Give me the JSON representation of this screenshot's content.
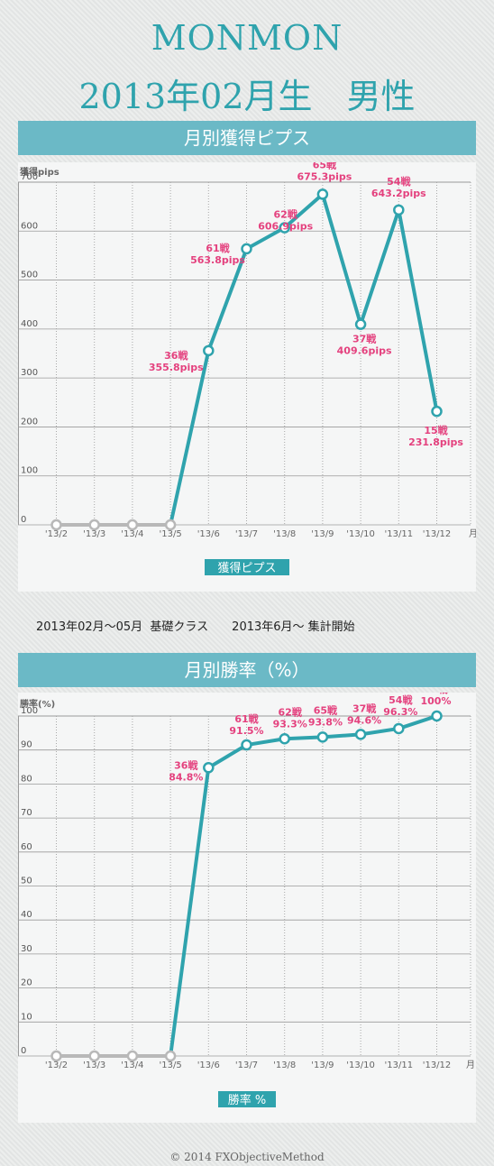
{
  "header": {
    "name": "MONMON",
    "profile": "2013年02月生　男性"
  },
  "note": "2013年02月～05月  基礎クラス　　2013年6月～ 集計開始",
  "footer": "© 2014 FXObjectiveMethod",
  "colors": {
    "accent": "#2fa3ad",
    "label": "#e4417e",
    "baseline": "#b8b8b8",
    "band": "#6bb9c6"
  },
  "chart_data": [
    {
      "type": "line",
      "title": "月別獲得ピプス",
      "ylabel": "獲得pips",
      "xunit": "月",
      "legend": "獲得ピプス",
      "categories": [
        "'13/2",
        "'13/3",
        "'13/4",
        "'13/5",
        "'13/6",
        "'13/7",
        "'13/8",
        "'13/9",
        "'13/10",
        "'13/11",
        "'13/12"
      ],
      "values": [
        0,
        0,
        0,
        0,
        355.8,
        563.8,
        606.9,
        675.3,
        409.6,
        643.2,
        231.8
      ],
      "labels": [
        null,
        null,
        null,
        null,
        [
          "36戦",
          "355.8pips"
        ],
        [
          "61戦",
          "563.8pips"
        ],
        [
          "62戦",
          "606.9pips"
        ],
        [
          "65戦",
          "675.3pips"
        ],
        [
          "37戦",
          "409.6pips"
        ],
        [
          "54戦",
          "643.2pips"
        ],
        [
          "15戦",
          "231.8pips"
        ]
      ],
      "yticks": [
        0,
        100,
        200,
        300,
        400,
        500,
        600,
        700
      ],
      "ylim": [
        0,
        700
      ],
      "grid": true
    },
    {
      "type": "line",
      "title": "月別勝率（%）",
      "ylabel": "勝率(%)",
      "xunit": "月",
      "legend": "勝率 %",
      "categories": [
        "'13/2",
        "'13/3",
        "'13/4",
        "'13/5",
        "'13/6",
        "'13/7",
        "'13/8",
        "'13/9",
        "'13/10",
        "'13/11",
        "'13/12"
      ],
      "values": [
        0,
        0,
        0,
        0,
        84.8,
        91.5,
        93.3,
        93.8,
        94.6,
        96.3,
        100
      ],
      "labels": [
        null,
        null,
        null,
        null,
        [
          "36戦",
          "84.8%"
        ],
        [
          "61戦",
          "91.5%"
        ],
        [
          "62戦",
          "93.3%"
        ],
        [
          "65戦",
          "93.8%"
        ],
        [
          "37戦",
          "94.6%"
        ],
        [
          "54戦",
          "96.3%"
        ],
        [
          "15戦",
          "100%"
        ]
      ],
      "yticks": [
        0,
        10,
        20,
        30,
        40,
        50,
        60,
        70,
        80,
        90,
        100
      ],
      "ylim": [
        0,
        100
      ],
      "grid": true
    }
  ]
}
